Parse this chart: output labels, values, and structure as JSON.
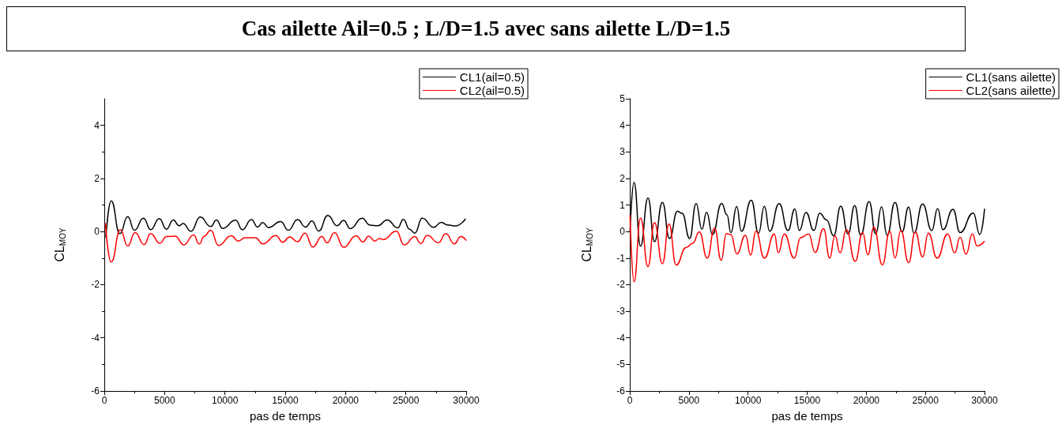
{
  "chart_data": [
    {
      "type": "line",
      "title": "Cas ailette Ail=0.5 ; L/D=1.5 avec sans ailette L/D=1.5",
      "xlabel": "pas de temps",
      "ylabel": "CL$_{MOY}$",
      "xlim": [
        0,
        30000
      ],
      "xticks": [
        0,
        5000,
        10000,
        15000,
        20000,
        25000,
        30000
      ],
      "ylim": [
        -6,
        5
      ],
      "yticks": [
        -6,
        -4,
        -2,
        0,
        2,
        4
      ],
      "grid": false,
      "legend": "top right",
      "marker": "none",
      "line_style": "solid",
      "series": [
        {
          "name": "CL1(ail=0.5)",
          "color": "#000000",
          "x": [
            130,
            570,
            1290,
            1940,
            2490,
            3250,
            3840,
            4560,
            5150,
            5720,
            6200,
            6530,
            7180,
            7950,
            8820,
            9300,
            9800,
            10890,
            11440,
            12200,
            12710,
            13120,
            13620,
            14610,
            15260,
            16020,
            16680,
            17220,
            17770,
            18530,
            19300,
            19840,
            20390,
            21370,
            22030,
            22680,
            23450,
            24320,
            24800,
            25300,
            25740,
            26350,
            27310,
            27920,
            28470,
            29120,
            29950
          ],
          "values": [
            -0.23,
            1.16,
            -0.08,
            0.56,
            0.05,
            0.5,
            0.07,
            0.49,
            0.09,
            0.44,
            0.22,
            0.3,
            0.01,
            0.55,
            0.19,
            0.44,
            0.12,
            0.43,
            0.07,
            0.45,
            0.17,
            0.34,
            0.15,
            0.38,
            0.05,
            0.45,
            0.17,
            0.4,
            0.02,
            0.61,
            0.22,
            0.42,
            0.11,
            0.5,
            0.24,
            0.22,
            0.44,
            0.14,
            0.46,
            0.09,
            -0.06,
            0.5,
            0.16,
            0.35,
            0.25,
            0.21,
            0.48
          ]
        },
        {
          "name": "CL2(ail=0.5)",
          "color": "#ff0000",
          "x": [
            90,
            570,
            1330,
            1940,
            2550,
            3300,
            3840,
            4610,
            5150,
            5870,
            6590,
            7400,
            7880,
            8270,
            8820,
            9470,
            10520,
            11110,
            11660,
            12530,
            13140,
            14230,
            14780,
            15370,
            16020,
            16630,
            17290,
            18030,
            18470,
            19080,
            19840,
            20870,
            21440,
            21920,
            22420,
            22790,
            23120,
            24210,
            24860,
            25740,
            26240,
            26760,
            27700,
            28310,
            29010,
            29560,
            30000
          ],
          "values": [
            0.32,
            -1.15,
            0.07,
            -0.54,
            -0.04,
            -0.49,
            -0.08,
            -0.44,
            -0.19,
            -0.17,
            -0.5,
            -0.13,
            -0.47,
            -0.18,
            0.05,
            -0.52,
            -0.16,
            -0.36,
            -0.23,
            -0.23,
            -0.46,
            -0.15,
            -0.4,
            -0.2,
            -0.38,
            -0.06,
            -0.58,
            -0.19,
            -0.42,
            -0.04,
            -0.59,
            -0.16,
            -0.39,
            -0.17,
            -0.36,
            -0.26,
            -0.3,
            0.01,
            -0.5,
            -0.19,
            -0.45,
            -0.14,
            -0.42,
            -0.08,
            -0.46,
            -0.19,
            -0.34
          ]
        }
      ]
    },
    {
      "type": "line",
      "xlabel": "pas de temps",
      "ylabel": "CL$_{MOY}$",
      "xlim": [
        0,
        30000
      ],
      "xticks": [
        0,
        5000,
        10000,
        15000,
        20000,
        25000,
        30000
      ],
      "ylim": [
        -6,
        5
      ],
      "yticks": [
        -6,
        -5,
        -4,
        -3,
        -2,
        -1,
        0,
        1,
        2,
        3,
        4,
        5
      ],
      "grid": false,
      "legend": "top right",
      "marker": "none",
      "line_style": "solid",
      "series": [
        {
          "name": "CL1(sans ailette)",
          "color": "#000000",
          "x": [
            20,
            360,
            910,
            1540,
            2090,
            2760,
            3360,
            4030,
            4430,
            5060,
            5610,
            6100,
            6500,
            6990,
            7770,
            8220,
            8550,
            9040,
            9440,
            10270,
            10890,
            11380,
            11830,
            12630,
            13380,
            13960,
            14340,
            14900,
            15570,
            16060,
            16640,
            17240,
            17840,
            18460,
            19020,
            19530,
            20240,
            20800,
            21290,
            21760,
            22430,
            23030,
            23580,
            24030,
            24760,
            25540,
            26030,
            26480,
            27330,
            27930,
            29040,
            29600,
            30000
          ],
          "values": [
            0,
            1.85,
            -0.55,
            1.26,
            -0.38,
            1.1,
            -0.26,
            0.76,
            0.69,
            -0.26,
            1.05,
            0.09,
            0.73,
            -0.11,
            1.06,
            0.63,
            -0.04,
            0.94,
            0.01,
            1.18,
            -0.06,
            0.95,
            0.01,
            1.05,
            0.04,
            0.85,
            0.04,
            0.72,
            0.04,
            0.69,
            0.44,
            -0.16,
            0.96,
            -0.09,
            0.98,
            -0.14,
            1.13,
            -0.09,
            0.93,
            -0.14,
            1.1,
            -0.01,
            0.92,
            -0.06,
            1.04,
            0.04,
            0.87,
            0.07,
            0.84,
            -0.04,
            0.7,
            -0.11,
            0.86
          ]
        },
        {
          "name": "CL2(sans ailette)",
          "color": "#ff0000",
          "x": [
            20,
            360,
            910,
            1540,
            2090,
            2760,
            3320,
            3920,
            4770,
            5320,
            5880,
            6550,
            7170,
            7730,
            8170,
            8550,
            9060,
            9780,
            10220,
            10670,
            11380,
            12230,
            12560,
            13070,
            13900,
            14450,
            15120,
            15680,
            16390,
            16900,
            17350,
            17790,
            18310,
            19060,
            19690,
            20130,
            20640,
            21360,
            21980,
            22430,
            22920,
            23580,
            24140,
            24760,
            25250,
            25990,
            26880,
            27480,
            27930,
            28440,
            28970,
            29370,
            30000
          ],
          "values": [
            0.63,
            -1.89,
            0.51,
            -1.32,
            0.34,
            -1.21,
            0.29,
            -1.26,
            -0.6,
            -0.44,
            -0.01,
            -1.0,
            0.13,
            -1.08,
            -0.08,
            -0.11,
            -0.84,
            -0.14,
            -0.88,
            0.01,
            -1.0,
            -0.09,
            -0.8,
            -0.09,
            -1.0,
            -0.23,
            -0.09,
            -0.78,
            0.11,
            -1.0,
            -0.16,
            -0.8,
            0.07,
            -1.12,
            -0.03,
            -0.87,
            0.16,
            -1.25,
            0.01,
            -0.99,
            0.04,
            -1.17,
            -0.01,
            -0.95,
            -0.06,
            -1.0,
            -0.09,
            -0.8,
            -0.21,
            -0.85,
            -0.09,
            -0.54,
            -0.36
          ]
        }
      ]
    }
  ]
}
